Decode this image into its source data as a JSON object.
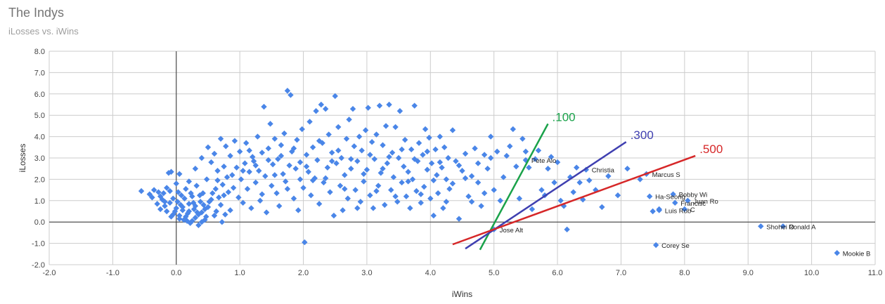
{
  "title": "The Indys",
  "subtitle": "iLosses vs. iWins",
  "chart_data": {
    "type": "scatter",
    "title": "The Indys",
    "subtitle": "iLosses vs. iWins",
    "xlabel": "iWins",
    "ylabel": "iLosses",
    "xlim": [
      -2.0,
      11.0
    ],
    "ylim": [
      -2.0,
      8.0
    ],
    "x_ticks": [
      "-2.0",
      "-1.0",
      "0.0",
      "1.0",
      "2.0",
      "3.0",
      "4.0",
      "5.0",
      "6.0",
      "7.0",
      "8.0",
      "9.0",
      "10.0",
      "11.0"
    ],
    "y_ticks": [
      "-2.0",
      "-1.0",
      "0.0",
      "1.0",
      "2.0",
      "3.0",
      "4.0",
      "5.0",
      "6.0",
      "7.0",
      "8.0"
    ],
    "grid": true,
    "marker": "diamond",
    "point_color": "#4a86e8",
    "point_count_approx": 600,
    "labeled_points": [
      {
        "label": "Pete Alo",
        "x": 5.5,
        "y": 2.9
      },
      {
        "label": "Christia",
        "x": 6.45,
        "y": 2.45
      },
      {
        "label": "Marcus S",
        "x": 7.4,
        "y": 2.25
      },
      {
        "label": "Ha-Seong",
        "x": 7.45,
        "y": 1.2
      },
      {
        "label": "Bobby Wi",
        "x": 7.82,
        "y": 1.3
      },
      {
        "label": "Francisc",
        "x": 7.85,
        "y": 0.9
      },
      {
        "label": "Juan Ro",
        "x": 8.05,
        "y": 1.0
      },
      {
        "label": "Luis Rob",
        "x": 7.6,
        "y": 0.55
      },
      {
        "label": "C",
        "x": 8.0,
        "y": 0.6
      },
      {
        "label": "Jose Alt",
        "x": 5.0,
        "y": -0.35
      },
      {
        "label": "Corey Se",
        "x": 7.55,
        "y": -1.08
      },
      {
        "label": "Shohei O",
        "x": 9.2,
        "y": -0.2
      },
      {
        "label": "Ronald A",
        "x": 9.55,
        "y": -0.2
      },
      {
        "label": "Mookie B",
        "x": 10.4,
        "y": -1.45
      }
    ],
    "points": [
      [
        -0.55,
        1.45
      ],
      [
        -0.42,
        1.3
      ],
      [
        -0.38,
        1.15
      ],
      [
        -0.35,
        1.5
      ],
      [
        -0.3,
        0.85
      ],
      [
        -0.28,
        1.4
      ],
      [
        -0.25,
        0.6
      ],
      [
        -0.22,
        1.05
      ],
      [
        -0.2,
        1.35
      ],
      [
        -0.18,
        0.75
      ],
      [
        -0.15,
        1.6
      ],
      [
        -0.12,
        2.3
      ],
      [
        -0.1,
        0.9
      ],
      [
        -0.08,
        2.35
      ],
      [
        -0.05,
        1.1
      ],
      [
        -0.02,
        0.5
      ],
      [
        0.0,
        1.8
      ],
      [
        0.02,
        0.95
      ],
      [
        0.05,
        0.3
      ],
      [
        0.05,
        2.25
      ],
      [
        0.08,
        1.25
      ],
      [
        0.1,
        0.7
      ],
      [
        0.12,
        0.1
      ],
      [
        0.15,
        1.55
      ],
      [
        0.18,
        0.4
      ],
      [
        0.2,
        0.85
      ],
      [
        0.22,
        -0.05
      ],
      [
        0.25,
        1.2
      ],
      [
        0.28,
        0.6
      ],
      [
        0.3,
        0.2
      ],
      [
        0.32,
        1.7
      ],
      [
        0.35,
        -0.15
      ],
      [
        0.38,
        0.95
      ],
      [
        0.4,
        0.45
      ],
      [
        0.42,
        1.35
      ],
      [
        0.45,
        0.1
      ],
      [
        0.48,
        2.0
      ],
      [
        0.5,
        0.7
      ],
      [
        0.55,
        1.05
      ],
      [
        0.6,
        0.3
      ],
      [
        0.62,
        1.55
      ],
      [
        0.65,
        2.4
      ],
      [
        0.7,
        0.8
      ],
      [
        0.72,
        0.0
      ],
      [
        0.75,
        1.25
      ],
      [
        0.8,
        2.1
      ],
      [
        0.85,
        0.55
      ],
      [
        0.9,
        1.6
      ],
      [
        -0.15,
        0.5
      ],
      [
        -0.05,
        0.35
      ],
      [
        0.0,
        0.65
      ],
      [
        0.05,
        0.15
      ],
      [
        0.1,
        0.55
      ],
      [
        0.15,
        0.25
      ],
      [
        0.2,
        0.5
      ],
      [
        0.25,
        0.05
      ],
      [
        0.3,
        0.75
      ],
      [
        0.35,
        0.35
      ],
      [
        0.4,
        0.0
      ],
      [
        0.45,
        0.6
      ],
      [
        0.2,
        1.9
      ],
      [
        0.3,
        2.5
      ],
      [
        0.4,
        3.0
      ],
      [
        0.5,
        3.5
      ],
      [
        0.55,
        2.8
      ],
      [
        0.6,
        3.2
      ],
      [
        0.65,
        1.95
      ],
      [
        0.7,
        3.9
      ],
      [
        0.75,
        2.6
      ],
      [
        0.78,
        3.55
      ],
      [
        0.82,
        1.4
      ],
      [
        0.85,
        3.1
      ],
      [
        0.88,
        2.2
      ],
      [
        0.92,
        3.8
      ],
      [
        0.95,
        2.55
      ],
      [
        0.98,
        1.15
      ],
      [
        1.0,
        3.3
      ],
      [
        1.02,
        2.0
      ],
      [
        1.05,
        0.9
      ],
      [
        1.08,
        2.75
      ],
      [
        1.1,
        3.7
      ],
      [
        1.12,
        1.55
      ],
      [
        1.15,
        2.35
      ],
      [
        1.18,
        0.65
      ],
      [
        1.2,
        3.05
      ],
      [
        1.22,
        2.85
      ],
      [
        1.25,
        1.85
      ],
      [
        1.28,
        4.0
      ],
      [
        1.3,
        2.4
      ],
      [
        1.32,
        1.0
      ],
      [
        1.35,
        3.25
      ],
      [
        1.38,
        5.4
      ],
      [
        1.4,
        2.15
      ],
      [
        1.42,
        0.45
      ],
      [
        1.45,
        3.45
      ],
      [
        1.48,
        4.6
      ],
      [
        1.5,
        1.7
      ],
      [
        1.52,
        2.7
      ],
      [
        1.55,
        3.9
      ],
      [
        1.58,
        1.35
      ],
      [
        1.6,
        2.95
      ],
      [
        1.62,
        0.75
      ],
      [
        1.65,
        3.6
      ],
      [
        1.68,
        2.25
      ],
      [
        1.7,
        4.15
      ],
      [
        1.72,
        1.9
      ],
      [
        1.75,
        6.15
      ],
      [
        1.78,
        2.65
      ],
      [
        1.8,
        5.95
      ],
      [
        1.82,
        3.3
      ],
      [
        1.85,
        1.1
      ],
      [
        1.88,
        2.5
      ],
      [
        1.9,
        3.85
      ],
      [
        1.92,
        0.55
      ],
      [
        1.95,
        2.8
      ],
      [
        1.98,
        4.35
      ],
      [
        2.0,
        1.6
      ],
      [
        2.02,
        -0.95
      ],
      [
        2.05,
        3.15
      ],
      [
        2.08,
        2.35
      ],
      [
        2.1,
        4.7
      ],
      [
        2.12,
        1.25
      ],
      [
        2.15,
        3.5
      ],
      [
        2.18,
        2.05
      ],
      [
        2.2,
        5.2
      ],
      [
        2.22,
        2.9
      ],
      [
        2.25,
        0.85
      ],
      [
        2.28,
        5.5
      ],
      [
        2.3,
        3.7
      ],
      [
        2.32,
        1.85
      ],
      [
        2.35,
        5.3
      ],
      [
        2.38,
        2.55
      ],
      [
        2.4,
        4.1
      ],
      [
        2.42,
        1.4
      ],
      [
        2.45,
        3.25
      ],
      [
        2.48,
        0.3
      ],
      [
        2.5,
        5.9
      ],
      [
        2.52,
        2.75
      ],
      [
        2.55,
        4.45
      ],
      [
        2.58,
        1.7
      ],
      [
        2.6,
        3.0
      ],
      [
        2.62,
        0.55
      ],
      [
        2.65,
        2.2
      ],
      [
        2.68,
        3.9
      ],
      [
        2.7,
        1.1
      ],
      [
        2.72,
        4.8
      ],
      [
        2.75,
        2.5
      ],
      [
        2.78,
        5.3
      ],
      [
        2.8,
        3.55
      ],
      [
        2.82,
        1.5
      ],
      [
        2.85,
        2.85
      ],
      [
        2.88,
        4.0
      ],
      [
        2.9,
        0.95
      ],
      [
        2.92,
        3.35
      ],
      [
        2.95,
        1.9
      ],
      [
        2.98,
        4.3
      ],
      [
        3.0,
        2.45
      ],
      [
        3.02,
        5.35
      ],
      [
        3.05,
        1.25
      ],
      [
        3.08,
        3.75
      ],
      [
        3.1,
        0.65
      ],
      [
        3.12,
        2.95
      ],
      [
        3.15,
        4.1
      ],
      [
        3.18,
        1.7
      ],
      [
        3.2,
        5.45
      ],
      [
        3.22,
        2.3
      ],
      [
        3.25,
        3.6
      ],
      [
        3.28,
        0.8
      ],
      [
        3.3,
        4.5
      ],
      [
        3.32,
        2.75
      ],
      [
        3.35,
        5.5
      ],
      [
        3.38,
        1.5
      ],
      [
        3.4,
        3.25
      ],
      [
        3.42,
        2.1
      ],
      [
        3.45,
        4.45
      ],
      [
        3.48,
        0.95
      ],
      [
        3.5,
        3.0
      ],
      [
        3.52,
        5.2
      ],
      [
        3.55,
        1.85
      ],
      [
        3.58,
        2.6
      ],
      [
        3.6,
        3.85
      ],
      [
        3.62,
        1.2
      ],
      [
        3.65,
        2.35
      ],
      [
        3.68,
        0.65
      ],
      [
        3.7,
        3.4
      ],
      [
        3.72,
        2.0
      ],
      [
        3.75,
        5.45
      ],
      [
        3.78,
        1.45
      ],
      [
        3.8,
        2.85
      ],
      [
        3.82,
        3.7
      ],
      [
        3.85,
        0.9
      ],
      [
        3.88,
        3.15
      ],
      [
        3.9,
        1.65
      ],
      [
        3.92,
        4.35
      ],
      [
        3.95,
        2.45
      ],
      [
        3.98,
        3.95
      ],
      [
        4.0,
        1.1
      ],
      [
        4.02,
        2.75
      ],
      [
        4.05,
        0.3
      ],
      [
        4.08,
        3.4
      ],
      [
        4.1,
        2.2
      ],
      [
        4.12,
        1.35
      ],
      [
        4.15,
        4.0
      ],
      [
        4.18,
        2.55
      ],
      [
        4.2,
        0.65
      ],
      [
        4.22,
        3.5
      ],
      [
        4.25,
        2.0
      ],
      [
        4.28,
        3.0
      ],
      [
        4.3,
        1.55
      ],
      [
        4.35,
        4.3
      ],
      [
        4.4,
        2.85
      ],
      [
        4.45,
        0.15
      ],
      [
        4.5,
        2.4
      ],
      [
        4.55,
        3.2
      ],
      [
        4.6,
        1.2
      ],
      [
        4.65,
        2.15
      ],
      [
        4.7,
        3.45
      ],
      [
        4.75,
        1.85
      ],
      [
        4.8,
        0.75
      ],
      [
        4.85,
        3.15
      ],
      [
        4.9,
        2.5
      ],
      [
        4.95,
        4.0
      ],
      [
        5.0,
        1.5
      ],
      [
        5.05,
        3.3
      ],
      [
        5.1,
        1.0
      ],
      [
        5.15,
        2.1
      ],
      [
        5.2,
        3.1
      ],
      [
        5.25,
        3.55
      ],
      [
        5.3,
        4.35
      ],
      [
        5.35,
        2.6
      ],
      [
        5.4,
        1.1
      ],
      [
        5.45,
        3.9
      ],
      [
        5.5,
        3.3
      ],
      [
        5.55,
        2.55
      ],
      [
        5.6,
        0.6
      ],
      [
        5.65,
        2.95
      ],
      [
        5.7,
        3.35
      ],
      [
        5.75,
        1.5
      ],
      [
        5.8,
        1.25
      ],
      [
        5.85,
        2.5
      ],
      [
        5.9,
        3.05
      ],
      [
        5.95,
        1.85
      ],
      [
        6.0,
        2.8
      ],
      [
        6.05,
        1.0
      ],
      [
        6.1,
        0.75
      ],
      [
        6.15,
        -0.35
      ],
      [
        6.2,
        2.1
      ],
      [
        6.25,
        1.4
      ],
      [
        6.3,
        2.55
      ],
      [
        6.35,
        1.85
      ],
      [
        6.4,
        1.05
      ],
      [
        6.5,
        1.95
      ],
      [
        6.6,
        1.5
      ],
      [
        6.7,
        0.7
      ],
      [
        6.8,
        2.15
      ],
      [
        6.95,
        1.25
      ],
      [
        7.1,
        2.5
      ],
      [
        7.3,
        2.0
      ],
      [
        7.5,
        0.5
      ],
      [
        7.6,
        0.6
      ],
      [
        -0.25,
        1.2
      ],
      [
        -0.18,
        0.95
      ],
      [
        -0.1,
        1.45
      ],
      [
        -0.08,
        0.25
      ],
      [
        0.03,
        1.4
      ],
      [
        0.07,
        0.8
      ],
      [
        0.13,
        1.1
      ],
      [
        0.17,
        0.05
      ],
      [
        0.23,
        1.35
      ],
      [
        0.27,
        0.9
      ],
      [
        0.33,
        0.45
      ],
      [
        0.37,
        1.25
      ],
      [
        0.43,
        0.8
      ],
      [
        0.47,
        0.25
      ],
      [
        0.52,
        0.95
      ],
      [
        0.57,
        1.35
      ],
      [
        0.63,
        0.5
      ],
      [
        0.67,
        1.15
      ],
      [
        0.73,
        1.75
      ],
      [
        0.77,
        0.35
      ],
      [
        1.05,
        2.4
      ],
      [
        1.15,
        3.35
      ],
      [
        1.25,
        2.65
      ],
      [
        1.35,
        1.3
      ],
      [
        1.45,
        2.9
      ],
      [
        1.55,
        2.2
      ],
      [
        1.65,
        3.1
      ],
      [
        1.75,
        1.55
      ],
      [
        1.85,
        3.45
      ],
      [
        1.95,
        2.0
      ],
      [
        2.05,
        2.6
      ],
      [
        2.15,
        1.95
      ],
      [
        2.25,
        3.8
      ],
      [
        2.35,
        2.05
      ],
      [
        2.45,
        2.85
      ],
      [
        2.55,
        3.35
      ],
      [
        2.65,
        1.55
      ],
      [
        2.75,
        2.95
      ],
      [
        2.85,
        0.65
      ],
      [
        2.95,
        2.25
      ],
      [
        3.05,
        3.15
      ],
      [
        3.15,
        1.45
      ],
      [
        3.25,
        2.5
      ],
      [
        3.35,
        3.05
      ],
      [
        3.45,
        1.2
      ],
      [
        3.55,
        3.4
      ],
      [
        3.65,
        1.9
      ],
      [
        3.75,
        2.95
      ],
      [
        3.85,
        1.3
      ],
      [
        3.95,
        3.3
      ],
      [
        4.05,
        1.95
      ],
      [
        4.15,
        2.8
      ],
      [
        4.25,
        0.95
      ],
      [
        4.35,
        1.8
      ],
      [
        4.45,
        2.65
      ],
      [
        4.55,
        2.05
      ],
      [
        4.65,
        0.95
      ],
      [
        4.75,
        2.75
      ],
      [
        4.85,
        1.35
      ],
      [
        4.95,
        3.0
      ]
    ],
    "reference_lines": [
      {
        "name": ".100",
        "color": "#1aa24a",
        "from": [
          4.78,
          -1.3
        ],
        "to": [
          5.85,
          4.6
        ]
      },
      {
        "name": ".300",
        "color": "#3f3fb0",
        "from": [
          4.55,
          -1.25
        ],
        "to": [
          7.08,
          3.75
        ]
      },
      {
        "name": ".500",
        "color": "#d62728",
        "from": [
          4.35,
          -1.05
        ],
        "to": [
          8.17,
          3.1
        ]
      }
    ]
  }
}
